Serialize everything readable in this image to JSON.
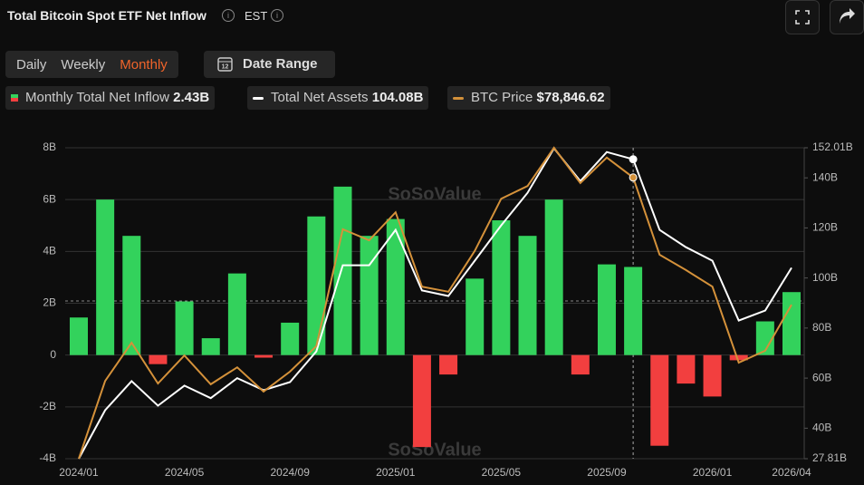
{
  "header": {
    "title": "Total Bitcoin Spot ETF Net Inflow",
    "timezone": "EST"
  },
  "tabs": [
    "Daily",
    "Weekly",
    "Monthly"
  ],
  "active_tab": 2,
  "date_range": "Date Range",
  "watermark": "SoSoValue",
  "chart_data": {
    "type": "combo",
    "categories": [
      "2024/01",
      null,
      null,
      null,
      "2024/05",
      null,
      null,
      null,
      "2024/09",
      null,
      null,
      null,
      "2025/01",
      null,
      null,
      null,
      "2025/05",
      null,
      null,
      null,
      "2025/09",
      null,
      null,
      null,
      "2026/01",
      null,
      null,
      "2026/04"
    ],
    "series": [
      {
        "name": "Monthly Total Net Inflow",
        "type": "bar",
        "color": "#33d25c",
        "negative_color": "#f23f3f",
        "value_label": "2.43B",
        "values": [
          1.45,
          6.0,
          4.6,
          -0.35,
          2.07,
          0.65,
          3.15,
          -0.1,
          1.25,
          5.35,
          6.5,
          4.6,
          5.25,
          -3.55,
          -0.75,
          2.95,
          5.2,
          4.6,
          6.0,
          -0.75,
          3.5,
          3.4,
          -3.5,
          -1.1,
          -1.6,
          -0.2,
          1.3,
          2.43
        ]
      },
      {
        "name": "Total Net Assets",
        "type": "line",
        "axis": "y2",
        "color": "#ffffff",
        "value_label": "104.08B",
        "values": [
          27.81,
          47.2,
          58.8,
          49,
          57,
          52,
          60,
          55.2,
          58.4,
          70.7,
          105.1,
          105.1,
          119.2,
          95,
          92.8,
          106.9,
          121,
          134,
          151.8,
          138.7,
          150.3,
          147.4,
          119.2,
          112.3,
          106.9,
          83,
          87,
          104.08
        ]
      },
      {
        "name": "BTC Price",
        "type": "line",
        "axis": "own",
        "color": "#d4913a",
        "value_label": "$78,846.62",
        "values": [
          42580,
          60900,
          69900,
          60300,
          66900,
          60100,
          64100,
          58400,
          63100,
          69100,
          96600,
          94000,
          100600,
          83100,
          81900,
          91500,
          103800,
          106800,
          115800,
          107500,
          113500,
          108800,
          90600,
          87000,
          83100,
          65200,
          68000,
          78846.62
        ]
      }
    ],
    "ylim": [
      -4,
      8
    ],
    "yticks": [
      {
        "value": -4,
        "label": "-4B"
      },
      {
        "value": -2,
        "label": "-2B"
      },
      0,
      {
        "value": 2,
        "label": "2B"
      },
      {
        "value": 4,
        "label": "4B"
      },
      {
        "value": 6,
        "label": "6B"
      },
      {
        "value": 8,
        "label": "8B"
      }
    ],
    "y2lim": [
      27.81,
      152.01
    ],
    "y2ticks": [
      {
        "value": 27.81,
        "label": "27.81B"
      },
      {
        "value": 40,
        "label": "40B"
      },
      {
        "value": 60,
        "label": "60B"
      },
      {
        "value": 80,
        "label": "80B"
      },
      {
        "value": 100,
        "label": "100B"
      },
      {
        "value": 120,
        "label": "120B"
      },
      {
        "value": 140,
        "label": "140B"
      },
      {
        "value": 152.01,
        "label": "152.01B"
      }
    ],
    "grid": true,
    "hover_index": 21
  }
}
